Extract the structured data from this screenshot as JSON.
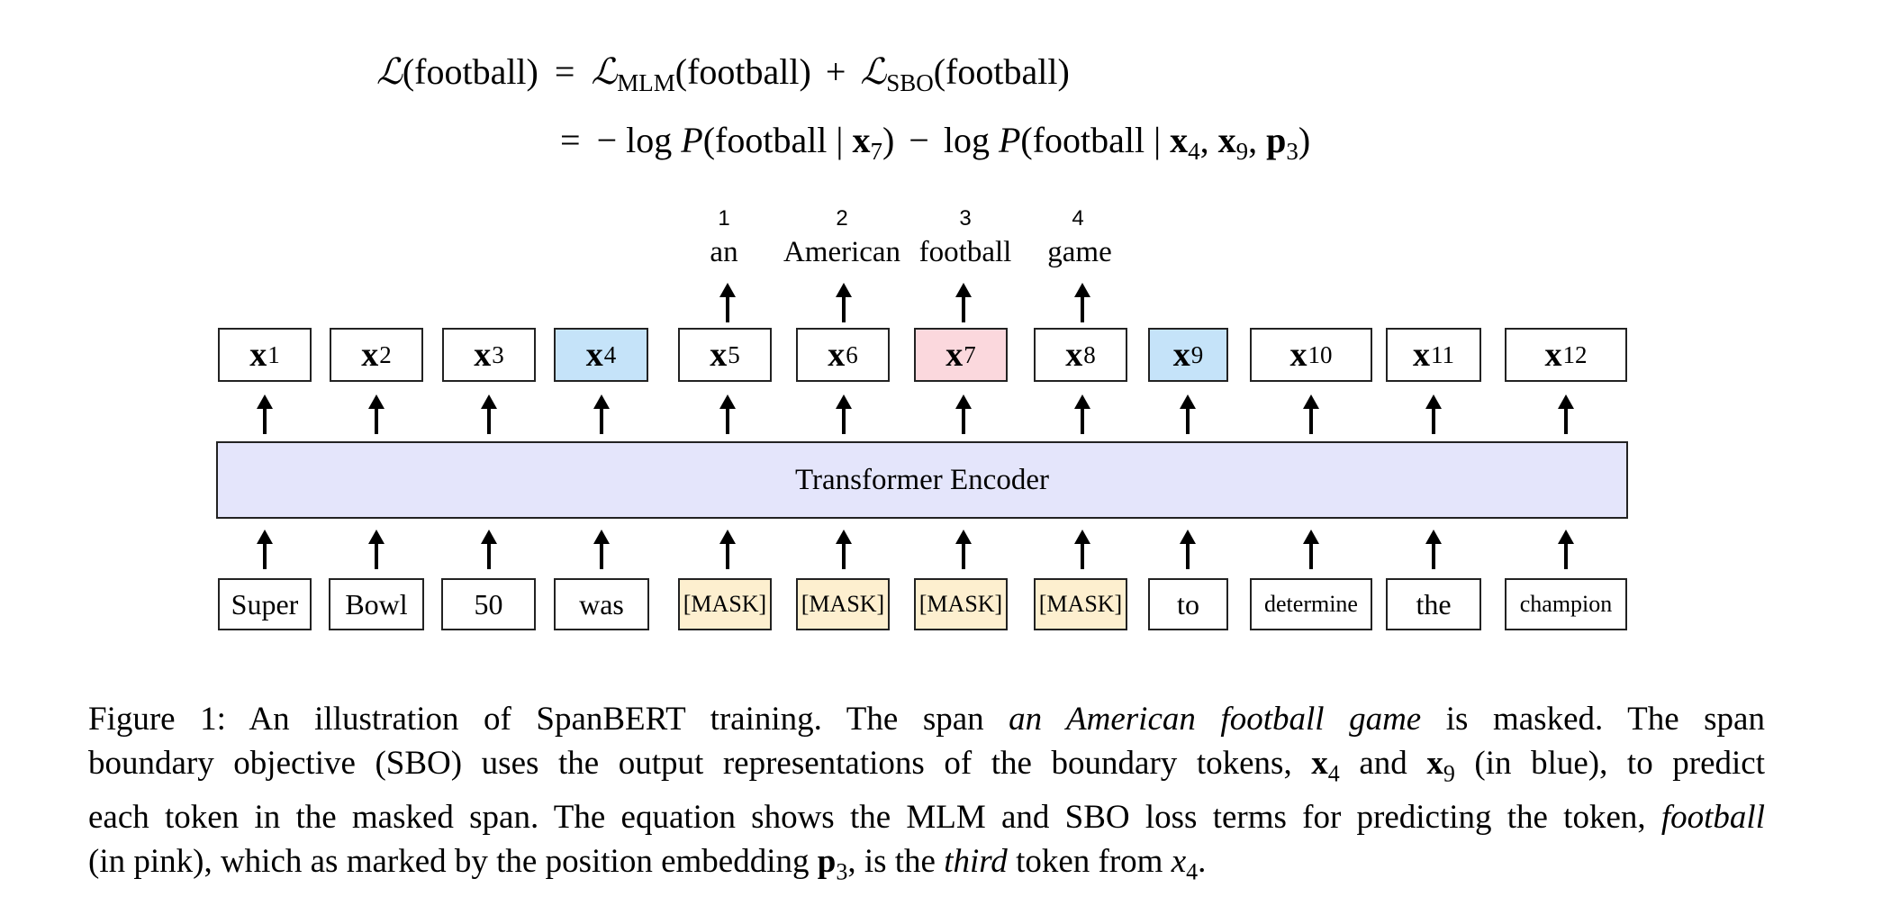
{
  "equation": {
    "line1": {
      "lhs_symbol": "ℒ",
      "lhs_arg": "(football)",
      "eq": "=",
      "term1_symbol": "ℒ",
      "term1_sub": "MLM",
      "term1_arg": "(football)",
      "plus": "+",
      "term2_symbol": "ℒ",
      "term2_sub": "SBO",
      "term2_arg": "(football)"
    },
    "line2": {
      "eq": "=",
      "minus1": "−",
      "log1": "log",
      "p1": "P",
      "arg1_open": "(football |",
      "x_bold": "x",
      "x_sub_7": "7",
      "arg1_close": ")",
      "minus2": "−",
      "log2": "log",
      "p2": "P",
      "arg2_open": "(football |",
      "x_sub_4": "4",
      "comma": ",",
      "x_sub_9": "9",
      "p_bold": "p",
      "p_sub_3": "3",
      "arg2_close": ")"
    }
  },
  "span_indices": [
    "1",
    "2",
    "3",
    "4"
  ],
  "span_words": [
    "an",
    "American",
    "football",
    "game"
  ],
  "outputs": {
    "symbol": "x",
    "subs": [
      "1",
      "2",
      "3",
      "4",
      "5",
      "6",
      "7",
      "8",
      "9",
      "10",
      "11",
      "12"
    ]
  },
  "encoder_label": "Transformer Encoder",
  "inputs": [
    "Super",
    "Bowl",
    "50",
    "was",
    "[MASK]",
    "[MASK]",
    "[MASK]",
    "[MASK]",
    "to",
    "determine",
    "the",
    "champion"
  ],
  "caption": {
    "l1_a": "Figure 1:  An illustration of SpanBERT training.  The span ",
    "l1_it": "an American football game",
    "l1_b": " is masked.  The span",
    "l2_a": "boundary objective (SBO) uses the output representations of the boundary tokens, ",
    "l2_x": "x",
    "l2_sub4": "4",
    "l2_b": " and ",
    "l2_sub9": "9",
    "l2_c": " (in blue), to predict",
    "l3_a": "each token in the masked span. The equation shows the MLM and SBO loss terms for predicting the token, ",
    "l3_it": "football",
    "l4_a": "(in pink), which as marked by the position embedding ",
    "l4_p": "p",
    "l4_sub3": "3",
    "l4_b": ", is the ",
    "l4_it": "third",
    "l4_c": " token from ",
    "l4_x": "x",
    "l4_sub4": "4",
    "l4_end": "."
  },
  "colors": {
    "boundary_blue": "#c5e3f9",
    "target_pink": "#fbd8dd",
    "mask_yellow": "#fdefcf",
    "encoder_lavender": "#e4e5fb"
  }
}
